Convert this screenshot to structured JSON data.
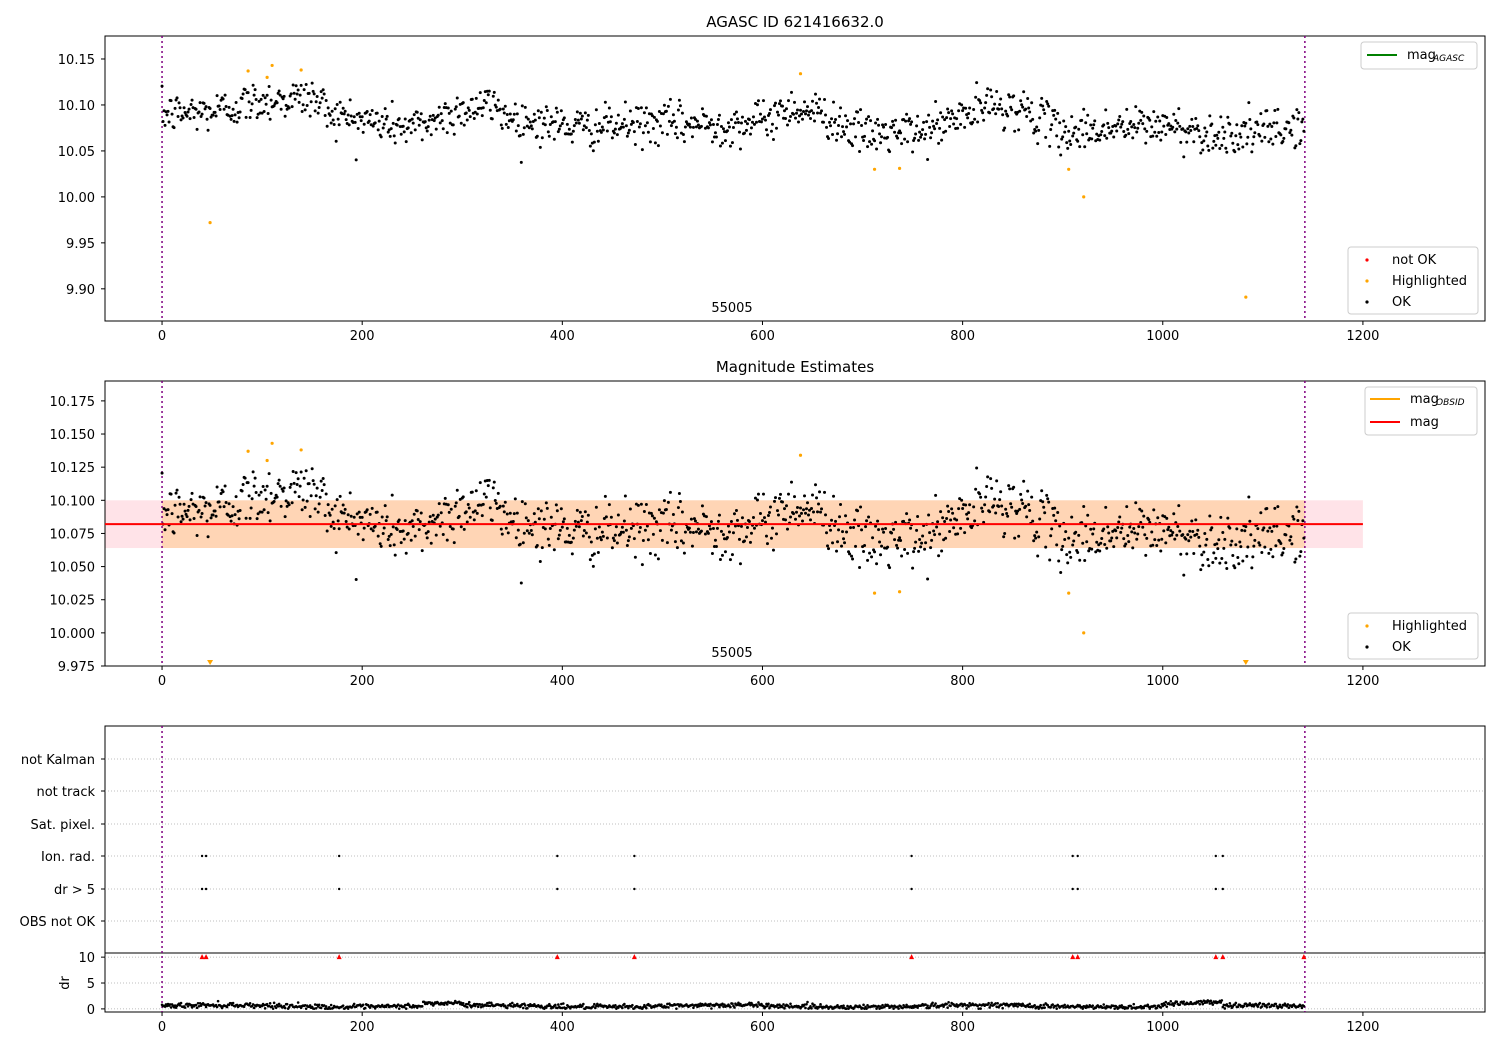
{
  "chart_data": [
    {
      "type": "scatter",
      "title": "AGASC ID 621416632.0",
      "xlim": [
        -57,
        1322
      ],
      "ylim": [
        9.865,
        10.175
      ],
      "xticks": [
        0,
        200,
        400,
        600,
        800,
        1000,
        1200
      ],
      "yticks": [
        9.9,
        9.95,
        10.0,
        10.05,
        10.1,
        10.15
      ],
      "ytick_labels": [
        "9.90",
        "9.95",
        "10.00",
        "10.05",
        "10.10",
        "10.15"
      ],
      "obsid_label": "55005",
      "obsid_boundaries": [
        0,
        1142
      ],
      "legend_lines": [
        {
          "label": "mag",
          "sub": "AGASC",
          "color": "#008000"
        }
      ],
      "legend_points": [
        {
          "label": "not OK",
          "color": "#ff0000"
        },
        {
          "label": "Highlighted",
          "color": "#ffa500"
        },
        {
          "label": "OK",
          "color": "#000000"
        }
      ],
      "series": [
        {
          "name": "OK",
          "color": "#000000",
          "n": 1142,
          "x_range": [
            0,
            1141
          ],
          "trend_knots": [
            [
              0,
              10.09
            ],
            [
              50,
              10.093
            ],
            [
              100,
              10.105
            ],
            [
              150,
              10.108
            ],
            [
              175,
              10.088
            ],
            [
              250,
              10.075
            ],
            [
              300,
              10.095
            ],
            [
              330,
              10.1
            ],
            [
              350,
              10.085
            ],
            [
              420,
              10.075
            ],
            [
              500,
              10.08
            ],
            [
              560,
              10.078
            ],
            [
              600,
              10.082
            ],
            [
              630,
              10.098
            ],
            [
              660,
              10.09
            ],
            [
              700,
              10.068
            ],
            [
              760,
              10.07
            ],
            [
              800,
              10.088
            ],
            [
              830,
              10.1
            ],
            [
              860,
              10.095
            ],
            [
              900,
              10.07
            ],
            [
              950,
              10.075
            ],
            [
              1000,
              10.078
            ],
            [
              1050,
              10.068
            ],
            [
              1100,
              10.07
            ],
            [
              1141,
              10.078
            ]
          ],
          "noise": 0.011
        },
        {
          "name": "Highlighted",
          "color": "#ffa500",
          "x": [
            48,
            86,
            105,
            110,
            139,
            638,
            712,
            737,
            906,
            921,
            1083
          ],
          "y": [
            9.972,
            10.137,
            10.13,
            10.143,
            10.138,
            10.134,
            10.03,
            10.031,
            10.03,
            10.0,
            9.891
          ]
        },
        {
          "name": "not OK",
          "color": "#ff0000",
          "x": [],
          "y": []
        }
      ]
    },
    {
      "type": "scatter",
      "title": "Magnitude Estimates",
      "xlim": [
        -57,
        1322
      ],
      "ylim": [
        9.975,
        10.19
      ],
      "xticks": [
        0,
        200,
        400,
        600,
        800,
        1000,
        1200
      ],
      "yticks": [
        9.975,
        10.0,
        10.025,
        10.05,
        10.075,
        10.1,
        10.125,
        10.15,
        10.175
      ],
      "ytick_labels": [
        "9.975",
        "10.000",
        "10.025",
        "10.050",
        "10.075",
        "10.100",
        "10.125",
        "10.150",
        "10.175"
      ],
      "obsid_label": "55005",
      "obsid_boundaries": [
        0,
        1142
      ],
      "mag_mean": 10.082,
      "mag_band": [
        10.064,
        10.1
      ],
      "mag_band_x": [
        -57,
        1200
      ],
      "mag_obsid_band_x": [
        0,
        1142
      ],
      "legend_lines": [
        {
          "label": "mag",
          "sub": "OBSID",
          "color": "#ffa500"
        },
        {
          "label": "mag",
          "sub": "",
          "color": "#ff0000"
        }
      ],
      "legend_points": [
        {
          "label": "Highlighted",
          "color": "#ffa500"
        },
        {
          "label": "OK",
          "color": "#000000"
        }
      ],
      "offscale_markers": [
        {
          "x": 48,
          "color": "#ffa500"
        },
        {
          "x": 1083,
          "color": "#ffa500"
        }
      ]
    },
    {
      "type": "scatter",
      "xlim": [
        -57,
        1322
      ],
      "xticks": [
        0,
        200,
        400,
        600,
        800,
        1000,
        1200
      ],
      "flag_labels": [
        "not Kalman",
        "not track",
        "Sat. pixel.",
        "Ion. rad.",
        "dr > 5",
        "OBS not OK"
      ],
      "flag_x": {
        "Ion. rad.": [
          40,
          44,
          177,
          395,
          472,
          749,
          910,
          915,
          1053,
          1060
        ],
        "dr > 5": [
          40,
          44,
          177,
          395,
          472,
          749,
          910,
          915,
          1053,
          1060
        ]
      },
      "dr_ylabel": "dr",
      "dr_yticks": [
        0,
        5,
        10
      ],
      "dr_ylim": [
        -0.6,
        10.8
      ],
      "dr_clipped_x": [
        40,
        44,
        177,
        395,
        472,
        749,
        910,
        915,
        1053,
        1060,
        1141
      ],
      "dr_series": {
        "name": "dr",
        "color": "#000000",
        "n": 1142,
        "base": 0.55,
        "noise": 0.25
      }
    }
  ]
}
